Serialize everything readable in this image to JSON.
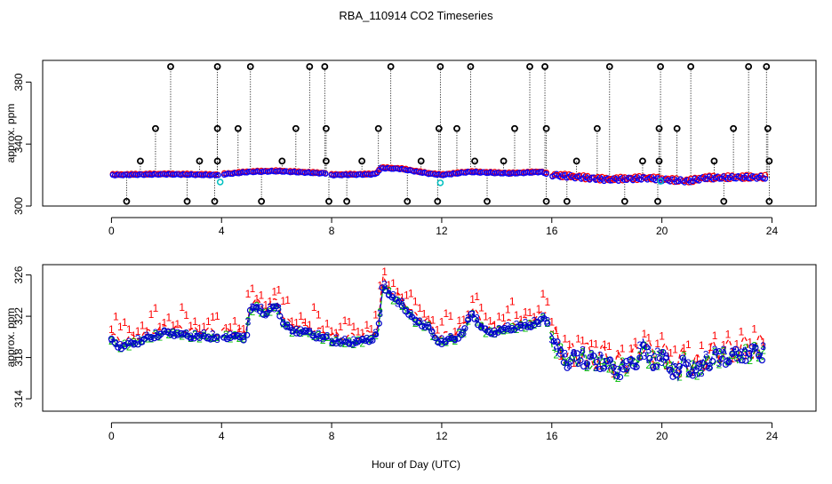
{
  "figure": {
    "title": "RBA_110914  CO2 Timeseries",
    "xlabel": "Hour of Day (UTC)"
  },
  "chart_data": [
    {
      "type": "scatter",
      "ylabel": "approx. ppm",
      "xlim": [
        -2.5,
        25.6
      ],
      "ylim": [
        300,
        394
      ],
      "xticks": [
        0,
        4,
        8,
        12,
        16,
        20,
        24
      ],
      "yticks": [
        300,
        340,
        380
      ],
      "colors": {
        "black": "#000000",
        "red": "#ff0000",
        "blue": "#0000ff",
        "cyan": "#00c0c0"
      },
      "baseline": [
        [
          0.0,
          320
        ],
        [
          2.0,
          320.5
        ],
        [
          3.8,
          320
        ],
        [
          5.0,
          322
        ],
        [
          6.0,
          322.5
        ],
        [
          7.8,
          321
        ],
        [
          8.0,
          320
        ],
        [
          9.6,
          320.5
        ],
        [
          9.8,
          324.5
        ],
        [
          10.5,
          324
        ],
        [
          11.5,
          321
        ],
        [
          12.0,
          320
        ],
        [
          13.0,
          322
        ],
        [
          14.5,
          321
        ],
        [
          15.6,
          322
        ],
        [
          15.9,
          320.5
        ],
        [
          16.0,
          320
        ],
        [
          18.0,
          317
        ],
        [
          19.5,
          318
        ],
        [
          20.0,
          317
        ],
        [
          21.0,
          316
        ],
        [
          21.5,
          318
        ],
        [
          23.0,
          318.5
        ],
        [
          23.8,
          318.5
        ]
      ],
      "outliers_high": [
        2.15,
        3.85,
        5.05,
        7.2,
        7.75,
        10.15,
        11.95,
        13.05,
        15.2,
        15.75,
        18.1,
        19.95,
        21.05,
        23.15,
        23.8
      ],
      "outliers_mid": [
        1.6,
        3.85,
        4.6,
        6.7,
        7.8,
        9.7,
        11.9,
        12.55,
        14.65,
        15.8,
        17.65,
        19.9,
        20.55,
        22.6,
        23.85
      ],
      "outliers_low_mid": [
        1.05,
        3.2,
        3.85,
        6.2,
        7.8,
        9.1,
        11.25,
        13.2,
        14.25,
        16.9,
        19.3,
        19.9,
        21.9,
        23.9
      ],
      "outliers_low": [
        0.55,
        2.75,
        3.75,
        5.45,
        7.9,
        8.55,
        10.75,
        11.85,
        13.65,
        15.8,
        16.55,
        18.65,
        19.85,
        22.25,
        23.9
      ],
      "cyan_points": [
        [
          3.95,
          315.5
        ],
        [
          11.95,
          315
        ],
        [
          19.95,
          316
        ]
      ]
    },
    {
      "type": "line",
      "ylabel": "approx. ppm",
      "xlim": [
        -2.5,
        25.6
      ],
      "ylim": [
        312.8,
        327
      ],
      "xticks": [
        0,
        4,
        8,
        12,
        16,
        20,
        24
      ],
      "yticks": [
        314,
        318,
        322,
        326
      ],
      "series": [
        {
          "name": "1",
          "color": "#ff0000",
          "label": "1",
          "offset": 0.6
        },
        {
          "name": "2",
          "color": "#00bb00",
          "label": "2",
          "offset": 0.0
        },
        {
          "name": "3",
          "color": "#0000cc",
          "label": "3",
          "offset": 0.25
        }
      ],
      "x": [
        0.0,
        0.3,
        0.6,
        1.0,
        1.5,
        2.0,
        2.5,
        3.0,
        3.5,
        3.9,
        4.0,
        4.5,
        4.9,
        5.0,
        5.3,
        5.6,
        6.0,
        6.3,
        6.6,
        7.0,
        7.5,
        7.8,
        8.0,
        8.5,
        9.0,
        9.5,
        9.7,
        9.85,
        10.0,
        10.3,
        10.6,
        11.0,
        11.5,
        11.8,
        12.0,
        12.5,
        12.8,
        13.1,
        13.4,
        13.7,
        14.0,
        14.5,
        15.0,
        15.5,
        15.8,
        16.0,
        16.3,
        16.6,
        17.0,
        17.5,
        18.0,
        18.3,
        18.6,
        19.0,
        19.3,
        19.6,
        20.0,
        20.3,
        20.6,
        20.8,
        21.0,
        21.3,
        21.6,
        22.0,
        22.5,
        23.0,
        23.5,
        23.7
      ],
      "y": [
        319.6,
        319,
        319.2,
        319.5,
        320,
        320.4,
        320.2,
        320,
        320,
        319.8,
        320,
        320,
        319.8,
        322.5,
        322.8,
        322.2,
        323.0,
        321,
        320.5,
        320.5,
        320,
        319.8,
        319.6,
        319.4,
        319.5,
        319.8,
        320.5,
        325,
        324.5,
        323.5,
        323.0,
        321.5,
        321,
        319.6,
        319.5,
        319.8,
        320.5,
        322.3,
        321,
        320.3,
        320.5,
        320.8,
        321,
        321.3,
        322,
        319.5,
        318.5,
        317.5,
        318,
        317.5,
        317.5,
        316.5,
        317,
        317.3,
        319,
        317.5,
        318,
        317,
        316.5,
        317.5,
        317,
        316.5,
        317.5,
        318,
        318,
        318.3,
        318.5,
        318.4
      ]
    }
  ]
}
